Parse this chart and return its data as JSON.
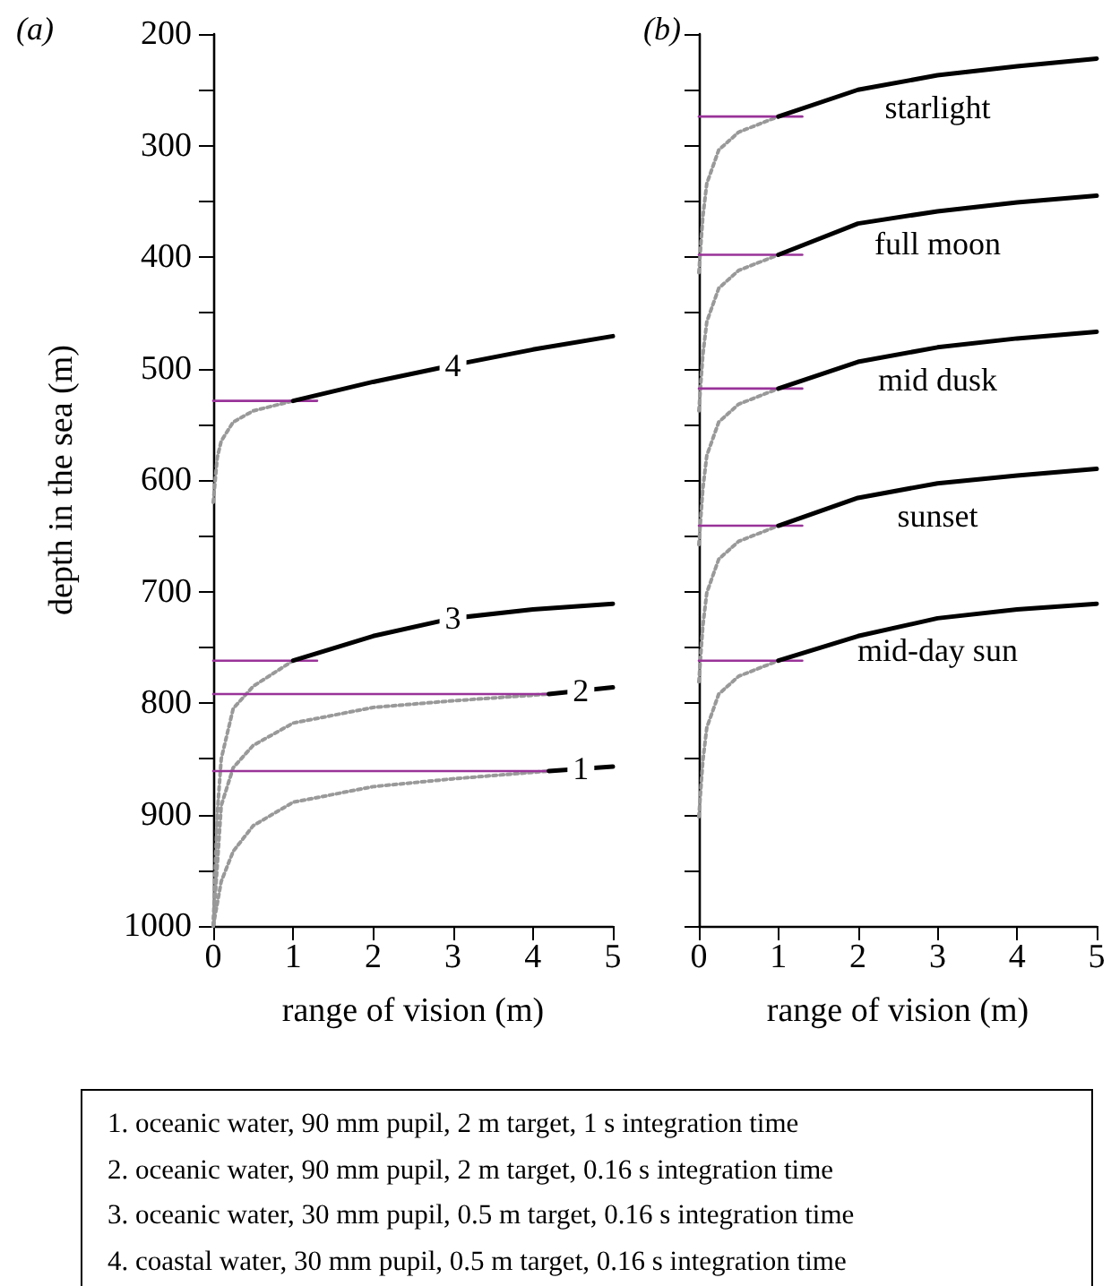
{
  "chart_data": [
    {
      "type": "line",
      "title": "(a)",
      "xlabel": "range of vision (m)",
      "ylabel": "depth in the sea (m)",
      "xlim": [
        0,
        5
      ],
      "ylim": [
        1000,
        200
      ],
      "xticks": [
        0,
        1,
        2,
        3,
        4,
        5
      ],
      "yticks": [
        200,
        {
          "value": 250,
          "label": null
        },
        300,
        {
          "value": 350,
          "label": null
        },
        400,
        {
          "value": 450,
          "label": null
        },
        500,
        {
          "value": 550,
          "label": null
        },
        600,
        {
          "value": 650,
          "label": null
        },
        700,
        {
          "value": 750,
          "label": null
        },
        800,
        {
          "value": 850,
          "label": null
        },
        900,
        {
          "value": 950,
          "label": null
        },
        1000
      ],
      "line_style": "solid",
      "marker": "none",
      "grid": false,
      "legend": false,
      "series": [
        {
          "name": "4",
          "color": "#000000",
          "x": [
            1,
            2,
            3,
            4,
            5
          ],
          "values": [
            529,
            512,
            497,
            483,
            471
          ]
        },
        {
          "color": "#999999",
          "line_style": "dotted",
          "x": [
            0,
            0.05,
            0.1,
            0.25,
            0.5,
            1
          ],
          "values": [
            620,
            580,
            565,
            548,
            538,
            529
          ]
        },
        {
          "color": "#993399",
          "x": [
            0,
            1.3
          ],
          "values": [
            529,
            529
          ]
        },
        {
          "name": "3",
          "color": "#000000",
          "x": [
            1,
            2,
            3,
            4,
            5
          ],
          "values": [
            762,
            740,
            724,
            716,
            711
          ]
        },
        {
          "color": "#999999",
          "line_style": "dotted",
          "x": [
            0,
            0.05,
            0.1,
            0.25,
            0.5,
            1
          ],
          "values": [
            1000,
            900,
            850,
            805,
            785,
            762
          ]
        },
        {
          "color": "#993399",
          "x": [
            0,
            1.3
          ],
          "values": [
            762,
            762
          ]
        },
        {
          "name": "2",
          "color": "#000000",
          "x": [
            4.2,
            4.6,
            5
          ],
          "values": [
            792,
            789,
            786
          ]
        },
        {
          "color": "#999999",
          "line_style": "dotted",
          "x": [
            0,
            0.1,
            0.25,
            0.5,
            1,
            2,
            3,
            4.2
          ],
          "values": [
            1000,
            892,
            858,
            838,
            818,
            804,
            798,
            792
          ]
        },
        {
          "color": "#993399",
          "x": [
            0,
            4.2
          ],
          "values": [
            792,
            792
          ]
        },
        {
          "name": "1",
          "color": "#000000",
          "x": [
            4.2,
            4.6,
            5
          ],
          "values": [
            861,
            859,
            857
          ]
        },
        {
          "color": "#999999",
          "line_style": "dotted",
          "x": [
            0,
            0.1,
            0.25,
            0.5,
            1,
            2,
            3,
            4.2
          ],
          "values": [
            1000,
            960,
            933,
            910,
            889,
            875,
            868,
            861
          ]
        },
        {
          "color": "#993399",
          "x": [
            0,
            4.2
          ],
          "values": [
            861,
            861
          ]
        }
      ]
    },
    {
      "type": "line",
      "title": "(b)",
      "xlabel": "range of vision (m)",
      "xlim": [
        0,
        5
      ],
      "ylim": [
        1000,
        200
      ],
      "xticks": [
        0,
        1,
        2,
        3,
        4,
        5
      ],
      "yticks": [
        200,
        {
          "value": 250,
          "label": null
        },
        300,
        {
          "value": 350,
          "label": null
        },
        400,
        {
          "value": 450,
          "label": null
        },
        500,
        {
          "value": 550,
          "label": null
        },
        600,
        {
          "value": 650,
          "label": null
        },
        700,
        {
          "value": 750,
          "label": null
        },
        800,
        {
          "value": 850,
          "label": null
        },
        900,
        {
          "value": 950,
          "label": null
        },
        1000
      ],
      "tick_labels": "x",
      "line_style": "solid",
      "marker": "none",
      "grid": false,
      "legend": false,
      "series": [
        {
          "name": "starlight",
          "color": "#000000",
          "x": [
            1,
            2,
            3,
            4,
            5
          ],
          "values": [
            274,
            250,
            237,
            229,
            222
          ]
        },
        {
          "color": "#999999",
          "line_style": "dotted",
          "x": [
            0,
            0.05,
            0.1,
            0.25,
            0.5,
            1
          ],
          "values": [
            414,
            364,
            334,
            304,
            288,
            274
          ]
        },
        {
          "color": "#993399",
          "x": [
            0,
            1.3
          ],
          "values": [
            274,
            274
          ]
        },
        {
          "name": "full moon",
          "color": "#000000",
          "x": [
            1,
            2,
            3,
            4,
            5
          ],
          "values": [
            398,
            370,
            359,
            351,
            345
          ]
        },
        {
          "color": "#999999",
          "line_style": "dotted",
          "x": [
            0,
            0.05,
            0.1,
            0.25,
            0.5,
            1
          ],
          "values": [
            538,
            488,
            458,
            428,
            412,
            398
          ]
        },
        {
          "color": "#993399",
          "x": [
            0,
            1.3
          ],
          "values": [
            398,
            398
          ]
        },
        {
          "name": "mid dusk",
          "color": "#000000",
          "x": [
            1,
            2,
            3,
            4,
            5
          ],
          "values": [
            518,
            494,
            481,
            473,
            467
          ]
        },
        {
          "color": "#999999",
          "line_style": "dotted",
          "x": [
            0,
            0.05,
            0.1,
            0.25,
            0.5,
            1
          ],
          "values": [
            658,
            608,
            578,
            548,
            532,
            518
          ]
        },
        {
          "color": "#993399",
          "x": [
            0,
            1.3
          ],
          "values": [
            518,
            518
          ]
        },
        {
          "name": "sunset",
          "color": "#000000",
          "x": [
            1,
            2,
            3,
            4,
            5
          ],
          "values": [
            641,
            616,
            603,
            596,
            590
          ]
        },
        {
          "color": "#999999",
          "line_style": "dotted",
          "x": [
            0,
            0.05,
            0.1,
            0.25,
            0.5,
            1
          ],
          "values": [
            781,
            731,
            701,
            671,
            655,
            641
          ]
        },
        {
          "color": "#993399",
          "x": [
            0,
            1.3
          ],
          "values": [
            641,
            641
          ]
        },
        {
          "name": "mid-day sun",
          "color": "#000000",
          "x": [
            1,
            2,
            3,
            4,
            5
          ],
          "values": [
            762,
            740,
            724,
            716,
            711
          ]
        },
        {
          "color": "#999999",
          "line_style": "dotted",
          "x": [
            0,
            0.05,
            0.1,
            0.25,
            0.5,
            1
          ],
          "values": [
            902,
            852,
            822,
            792,
            776,
            762
          ]
        },
        {
          "color": "#993399",
          "x": [
            0,
            1.3
          ],
          "values": [
            762,
            762
          ]
        }
      ]
    },
    {
      "type": "other",
      "annotations": [
        "1. oceanic water, 90 mm pupil, 2 m target, 1 s integration time",
        "2. oceanic water, 90 mm pupil, 2 m target, 0.16 s integration time",
        "3. oceanic water, 30 mm pupil, 0.5 m target, 0.16 s integration time",
        "4. coastal water, 30 mm pupil, 0.5 m target, 0.16 s integration time"
      ]
    }
  ]
}
